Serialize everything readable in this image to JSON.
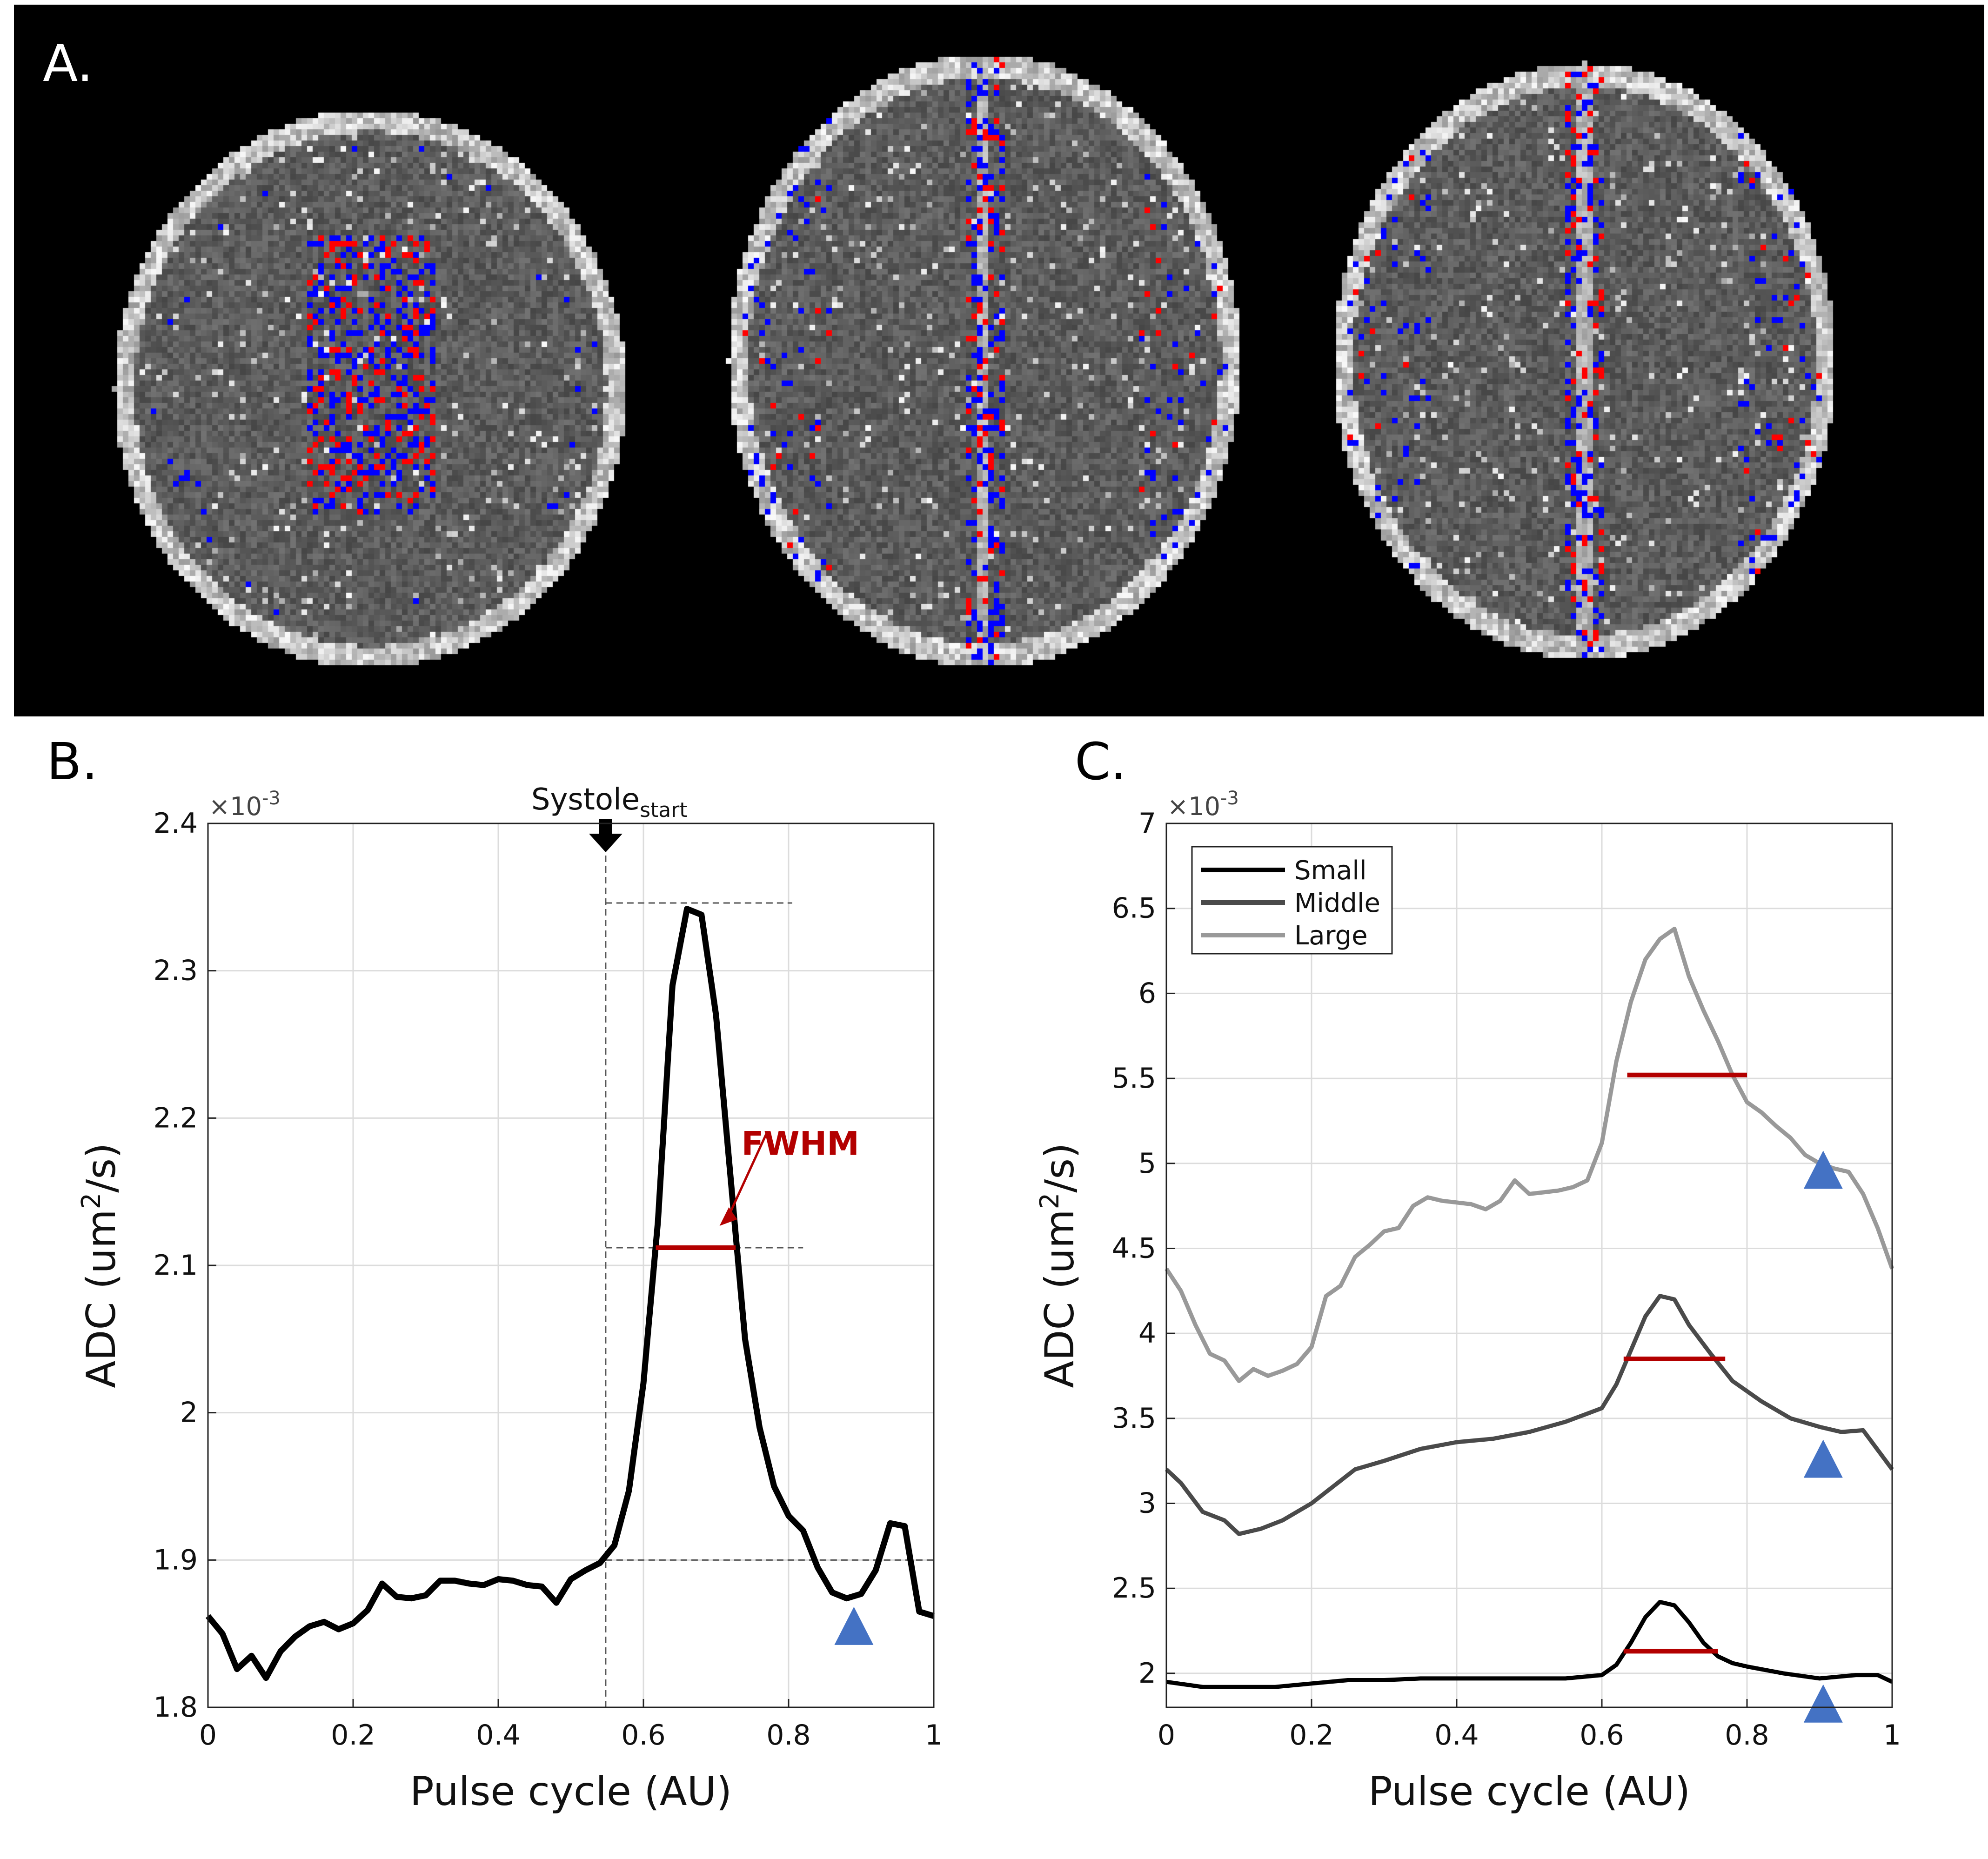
{
  "panel_a": {
    "label": "A.",
    "overlay_colors": {
      "background": "#000000",
      "tissue": "#666666",
      "red": "#ff0000",
      "blue": "#0000ff"
    },
    "slice_count": 3
  },
  "chart_data": [
    {
      "panel_label": "B.",
      "type": "line",
      "xlabel": "Pulse cycle (AU)",
      "ylabel_prefix": "ADC (um",
      "ylabel_sup": "2",
      "ylabel_suffix": "/s)",
      "exponent_label": "×10",
      "exponent_sup": "-3",
      "xlim": [
        0,
        1
      ],
      "ylim": [
        1.8,
        2.4
      ],
      "xticks": [
        "0",
        "0.2",
        "0.4",
        "0.6",
        "0.8",
        "1"
      ],
      "yticks": [
        "1.8",
        "1.9",
        "2",
        "2.1",
        "2.2",
        "2.3",
        "2.4"
      ],
      "grid": true,
      "series": [
        {
          "color": "#000000",
          "x": [
            0,
            0.02,
            0.04,
            0.06,
            0.08,
            0.1,
            0.12,
            0.14,
            0.16,
            0.18,
            0.2,
            0.22,
            0.24,
            0.26,
            0.28,
            0.3,
            0.32,
            0.34,
            0.36,
            0.38,
            0.4,
            0.42,
            0.44,
            0.46,
            0.48,
            0.5,
            0.52,
            0.54,
            0.56,
            0.58,
            0.6,
            0.62,
            0.64,
            0.66,
            0.68,
            0.7,
            0.72,
            0.74,
            0.76,
            0.78,
            0.8,
            0.82,
            0.84,
            0.86,
            0.88,
            0.9,
            0.92,
            0.94,
            0.96,
            0.98,
            1.0
          ],
          "y": [
            1.862,
            1.85,
            1.826,
            1.835,
            1.82,
            1.838,
            1.848,
            1.855,
            1.858,
            1.853,
            1.857,
            1.866,
            1.884,
            1.875,
            1.874,
            1.876,
            1.886,
            1.886,
            1.884,
            1.883,
            1.887,
            1.886,
            1.883,
            1.882,
            1.871,
            1.887,
            1.893,
            1.898,
            1.91,
            1.947,
            2.02,
            2.13,
            2.29,
            2.342,
            2.338,
            2.27,
            2.16,
            2.05,
            1.99,
            1.95,
            1.93,
            1.92,
            1.895,
            1.878,
            1.874,
            1.877,
            1.893,
            1.925,
            1.923,
            1.865,
            1.862
          ]
        }
      ],
      "annotations": {
        "systole_text": "Systole",
        "systole_sub": "start",
        "systole_x": 0.548,
        "fwhm_text": "FWHM",
        "fwhm_color": "#b30000",
        "fwhm_y": 2.112,
        "fwhm_x": [
          0.617,
          0.727
        ],
        "peak_y": 2.346,
        "baseline_y": 1.9,
        "guide_x_end_peak": 0.805,
        "guide_x_end_half": 0.82,
        "triangle_x": 0.89,
        "triangle_y": 1.855,
        "triangle_color": "#4472c4"
      }
    },
    {
      "panel_label": "C.",
      "type": "line",
      "xlabel": "Pulse cycle (AU)",
      "ylabel_prefix": "ADC (um",
      "ylabel_sup": "2",
      "ylabel_suffix": "/s)",
      "exponent_label": "×10",
      "exponent_sup": "-3",
      "xlim": [
        0,
        1
      ],
      "ylim": [
        1.8,
        7.0
      ],
      "xticks": [
        "0",
        "0.2",
        "0.4",
        "0.6",
        "0.8",
        "1"
      ],
      "yticks": [
        "2",
        "2.5",
        "3",
        "3.5",
        "4",
        "4.5",
        "5",
        "5.5",
        "6",
        "6.5",
        "7"
      ],
      "ytick_values": [
        2,
        2.5,
        3,
        3.5,
        4,
        4.5,
        5,
        5.5,
        6,
        6.5,
        7
      ],
      "grid": true,
      "legend_position": "top-left",
      "series": [
        {
          "name": "Small",
          "color": "#000000",
          "x": [
            0,
            0.05,
            0.1,
            0.15,
            0.2,
            0.25,
            0.3,
            0.35,
            0.4,
            0.45,
            0.5,
            0.55,
            0.6,
            0.62,
            0.64,
            0.66,
            0.68,
            0.7,
            0.72,
            0.74,
            0.76,
            0.78,
            0.8,
            0.85,
            0.9,
            0.95,
            0.98,
            1.0
          ],
          "y": [
            1.95,
            1.92,
            1.92,
            1.92,
            1.94,
            1.96,
            1.96,
            1.97,
            1.97,
            1.97,
            1.97,
            1.97,
            1.99,
            2.05,
            2.18,
            2.33,
            2.42,
            2.4,
            2.3,
            2.18,
            2.1,
            2.06,
            2.04,
            2.0,
            1.97,
            1.99,
            1.99,
            1.95
          ]
        },
        {
          "name": "Middle",
          "color": "#4a4a4a",
          "x": [
            0,
            0.02,
            0.05,
            0.08,
            0.1,
            0.13,
            0.16,
            0.2,
            0.23,
            0.26,
            0.3,
            0.35,
            0.4,
            0.45,
            0.5,
            0.55,
            0.6,
            0.62,
            0.64,
            0.66,
            0.68,
            0.7,
            0.72,
            0.75,
            0.78,
            0.82,
            0.86,
            0.9,
            0.93,
            0.96,
            1.0
          ],
          "y": [
            3.2,
            3.12,
            2.95,
            2.9,
            2.82,
            2.85,
            2.9,
            3.0,
            3.1,
            3.2,
            3.25,
            3.32,
            3.36,
            3.38,
            3.42,
            3.48,
            3.56,
            3.7,
            3.9,
            4.1,
            4.22,
            4.2,
            4.05,
            3.88,
            3.72,
            3.6,
            3.5,
            3.45,
            3.42,
            3.43,
            3.2
          ]
        },
        {
          "name": "Large",
          "color": "#999999",
          "x": [
            0,
            0.02,
            0.04,
            0.06,
            0.08,
            0.1,
            0.12,
            0.14,
            0.16,
            0.18,
            0.2,
            0.22,
            0.24,
            0.26,
            0.28,
            0.3,
            0.32,
            0.34,
            0.36,
            0.38,
            0.4,
            0.42,
            0.44,
            0.46,
            0.48,
            0.5,
            0.52,
            0.54,
            0.56,
            0.58,
            0.6,
            0.62,
            0.64,
            0.66,
            0.68,
            0.7,
            0.72,
            0.74,
            0.76,
            0.78,
            0.8,
            0.82,
            0.84,
            0.86,
            0.88,
            0.9,
            0.92,
            0.94,
            0.96,
            0.98,
            1.0
          ],
          "y": [
            4.38,
            4.25,
            4.05,
            3.88,
            3.84,
            3.72,
            3.79,
            3.75,
            3.78,
            3.82,
            3.92,
            4.22,
            4.28,
            4.45,
            4.52,
            4.6,
            4.62,
            4.75,
            4.8,
            4.78,
            4.77,
            4.76,
            4.73,
            4.78,
            4.9,
            4.82,
            4.83,
            4.84,
            4.86,
            4.9,
            5.12,
            5.6,
            5.95,
            6.2,
            6.32,
            6.38,
            6.1,
            5.9,
            5.72,
            5.52,
            5.36,
            5.3,
            5.22,
            5.15,
            5.05,
            5.0,
            4.97,
            4.95,
            4.82,
            4.62,
            4.38
          ]
        }
      ],
      "annotations": {
        "fwhm_color": "#b30000",
        "fwhm_lines": [
          {
            "y": 5.52,
            "x": [
              0.635,
              0.8
            ]
          },
          {
            "y": 3.85,
            "x": [
              0.63,
              0.77
            ]
          },
          {
            "y": 2.13,
            "x": [
              0.63,
              0.76
            ]
          }
        ],
        "triangle_color": "#4472c4",
        "triangles": [
          {
            "x": 0.905,
            "y": 4.96
          },
          {
            "x": 0.905,
            "y": 3.26
          },
          {
            "x": 0.905,
            "y": 1.82
          }
        ]
      }
    }
  ]
}
